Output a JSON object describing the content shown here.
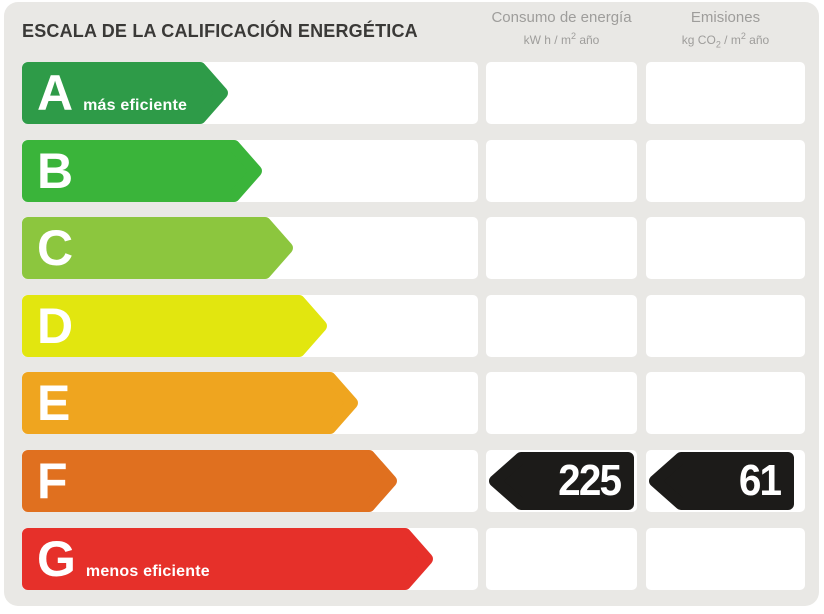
{
  "title": "ESCALA DE LA CALIFICACIÓN ENERGÉTICA",
  "colors": {
    "panel_bg": "#e9e8e5",
    "title_text": "#3a3937",
    "header_text": "#9e9d9b",
    "box_bg": "#ffffff",
    "badge_bg": "#1c1b19",
    "badge_text": "#ffffff"
  },
  "columns": {
    "consumo": {
      "title": "Consumo de energía",
      "unit_pre": "kW h / m",
      "unit_sup": "2",
      "unit_post": " año"
    },
    "emisiones": {
      "title": "Emisiones",
      "unit_pre": "kg CO",
      "unit_sub": "2",
      "unit_mid": " / m",
      "unit_sup": "2",
      "unit_post": " año"
    }
  },
  "scale": {
    "rows": [
      {
        "letter": "A",
        "note": "más eficiente",
        "color": "#2e9b48",
        "arrow_width": 206
      },
      {
        "letter": "B",
        "note": "",
        "color": "#3ab43a",
        "arrow_width": 240
      },
      {
        "letter": "C",
        "note": "",
        "color": "#8cc63e",
        "arrow_width": 271
      },
      {
        "letter": "D",
        "note": "",
        "color": "#e2e60f",
        "arrow_width": 305
      },
      {
        "letter": "E",
        "note": "",
        "color": "#efa51f",
        "arrow_width": 336
      },
      {
        "letter": "F",
        "note": "",
        "color": "#e0701f",
        "arrow_width": 375
      },
      {
        "letter": "G",
        "note": "menos eficiente",
        "color": "#e6302a",
        "arrow_width": 411
      }
    ]
  },
  "result": {
    "rating_letter": "F",
    "consumo_value": "225",
    "emisiones_value": "61"
  },
  "chart_data": {
    "type": "bar",
    "title": "ESCALA DE LA CALIFICACIÓN ENERGÉTICA",
    "categories": [
      "A",
      "B",
      "C",
      "D",
      "E",
      "F",
      "G"
    ],
    "values": [
      206,
      240,
      271,
      305,
      336,
      375,
      411
    ],
    "bar_colors": [
      "#2e9b48",
      "#3ab43a",
      "#8cc63e",
      "#e2e60f",
      "#efa51f",
      "#e0701f",
      "#e6302a"
    ],
    "annotations": [
      "A más eficiente",
      "G menos eficiente"
    ],
    "columns": [
      "Consumo de energía (kW h / m² año)",
      "Emisiones (kg CO₂ / m² año)"
    ],
    "highlighted_rating": "F",
    "result_values": {
      "consumo_kwh_m2_ano": 225,
      "emisiones_kgco2_m2_ano": 61
    },
    "legend_position": "none",
    "grid": false
  }
}
